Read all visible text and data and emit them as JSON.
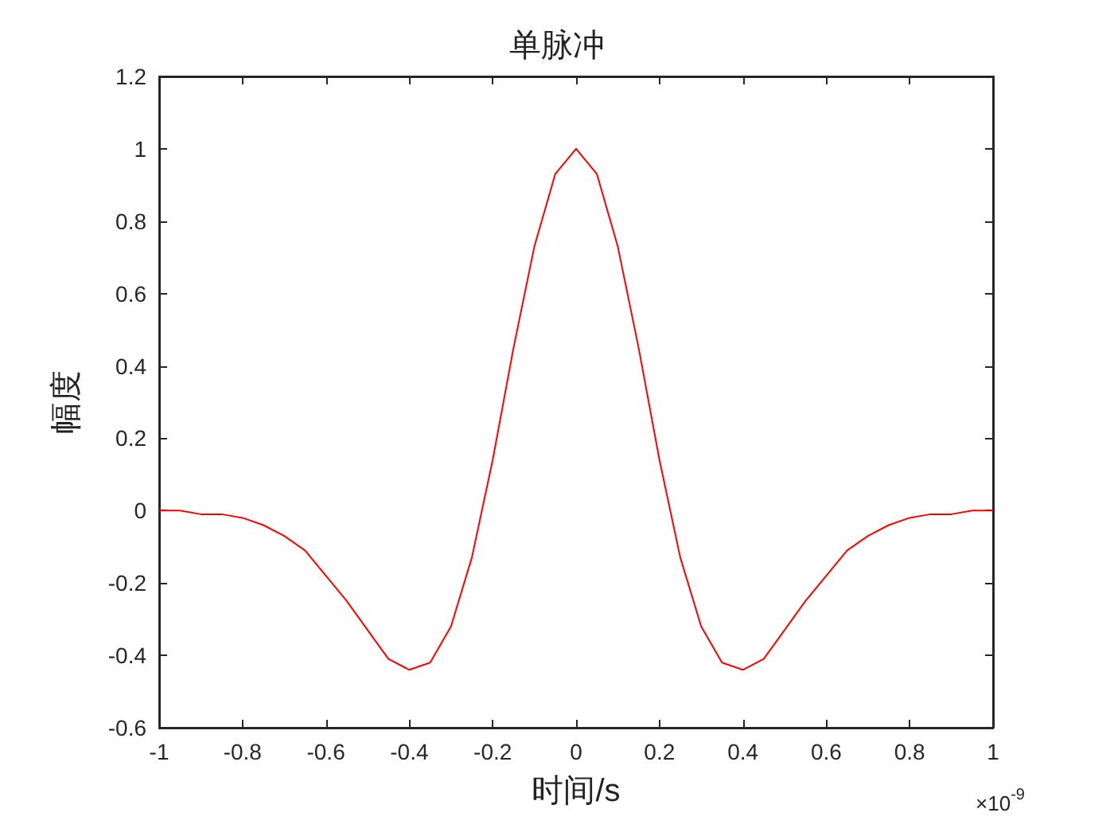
{
  "chart_data": {
    "type": "line",
    "title": "单脉冲",
    "xlabel": "时间/s",
    "ylabel": "幅度",
    "annotations": [
      "×10$^{-9}$"
    ],
    "x": [
      -1,
      -0.95,
      -0.9,
      -0.85,
      -0.8,
      -0.75,
      -0.7,
      -0.65,
      -0.6,
      -0.55,
      -0.5,
      -0.45,
      -0.4,
      -0.35,
      -0.3,
      -0.25,
      -0.2,
      -0.15,
      -0.1,
      -0.05,
      0,
      0.05,
      0.1,
      0.15,
      0.2,
      0.25,
      0.3,
      0.35,
      0.4,
      0.45,
      0.5,
      0.55,
      0.6,
      0.65,
      0.7,
      0.75,
      0.8,
      0.85,
      0.9,
      0.95,
      1
    ],
    "series": [
      {
        "color": "#ff0000",
        "values": [
          0,
          0,
          -0.01,
          -0.01,
          -0.02,
          -0.04,
          -0.07,
          -0.11,
          -0.18,
          -0.25,
          -0.33,
          -0.41,
          -0.44,
          -0.42,
          -0.32,
          -0.13,
          0.14,
          0.45,
          0.73,
          0.93,
          1,
          0.93,
          0.73,
          0.45,
          0.14,
          -0.13,
          -0.32,
          -0.42,
          -0.44,
          -0.41,
          -0.33,
          -0.25,
          -0.18,
          -0.11,
          -0.07,
          -0.04,
          -0.02,
          -0.01,
          -0.01,
          0,
          0
        ]
      }
    ],
    "xlim": [
      -1,
      1
    ],
    "xticks": [
      -1,
      -0.8,
      -0.6,
      -0.4,
      -0.2,
      0,
      0.2,
      0.4,
      0.6,
      0.8,
      1
    ],
    "ylim": [
      -0.6,
      1.2
    ],
    "yticks": [
      -0.6,
      -0.4,
      -0.2,
      0,
      0.2,
      0.4,
      0.6,
      0.8,
      1,
      1.2
    ],
    "grid": false,
    "marker": "none",
    "line_style": "solid"
  }
}
